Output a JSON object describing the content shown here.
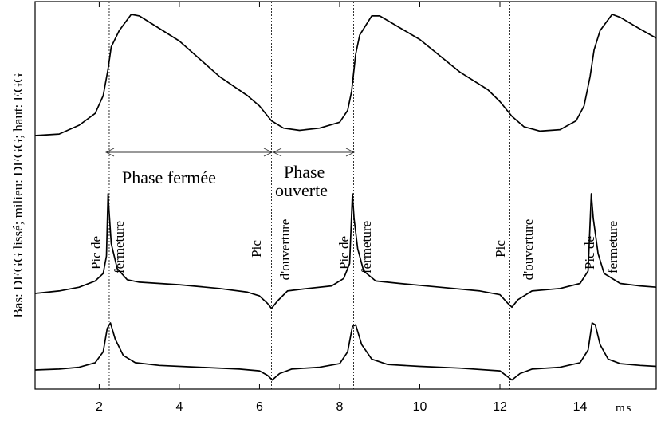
{
  "chart_data": {
    "type": "line",
    "title": "",
    "ylabel": "Bas: DEGG lissé; milieu: DEGG; haut: EGG",
    "xunit": "ms",
    "xlim": [
      0.4,
      15.9
    ],
    "xticks": [
      2,
      4,
      6,
      8,
      10,
      12,
      14
    ],
    "grid": false,
    "legend": "none",
    "markers": [
      2.25,
      6.3,
      8.35,
      12.25,
      14.3
    ],
    "series": [
      {
        "name": "EGG",
        "points": [
          [
            0.4,
            3.5
          ],
          [
            1.0,
            3.6
          ],
          [
            1.5,
            4.2
          ],
          [
            1.9,
            5.0
          ],
          [
            2.1,
            6.2
          ],
          [
            2.22,
            8.0
          ],
          [
            2.3,
            9.5
          ],
          [
            2.5,
            10.6
          ],
          [
            2.8,
            11.7
          ],
          [
            3.0,
            11.6
          ],
          [
            4.0,
            9.9
          ],
          [
            5.0,
            7.5
          ],
          [
            5.7,
            6.2
          ],
          [
            6.0,
            5.5
          ],
          [
            6.3,
            4.5
          ],
          [
            6.6,
            4.0
          ],
          [
            7.0,
            3.85
          ],
          [
            7.5,
            4.0
          ],
          [
            8.0,
            4.4
          ],
          [
            8.2,
            5.2
          ],
          [
            8.3,
            6.5
          ],
          [
            8.4,
            9.0
          ],
          [
            8.5,
            10.3
          ],
          [
            8.8,
            11.6
          ],
          [
            9.0,
            11.6
          ],
          [
            10.0,
            10.0
          ],
          [
            11.0,
            7.8
          ],
          [
            11.7,
            6.6
          ],
          [
            12.0,
            5.8
          ],
          [
            12.3,
            4.8
          ],
          [
            12.6,
            4.1
          ],
          [
            13.0,
            3.8
          ],
          [
            13.5,
            3.9
          ],
          [
            13.9,
            4.5
          ],
          [
            14.1,
            5.5
          ],
          [
            14.25,
            7.5
          ],
          [
            14.35,
            9.3
          ],
          [
            14.5,
            10.6
          ],
          [
            14.8,
            11.7
          ],
          [
            15.0,
            11.5
          ],
          [
            15.5,
            10.7
          ],
          [
            15.9,
            10.1
          ]
        ]
      },
      {
        "name": "DEGG",
        "points": [
          [
            0.4,
            0.0
          ],
          [
            1.0,
            0.1
          ],
          [
            1.5,
            0.25
          ],
          [
            1.9,
            0.5
          ],
          [
            2.1,
            0.8
          ],
          [
            2.18,
            1.5
          ],
          [
            2.22,
            4.0
          ],
          [
            2.25,
            3.2
          ],
          [
            2.3,
            2.0
          ],
          [
            2.45,
            1.0
          ],
          [
            2.7,
            0.55
          ],
          [
            3.0,
            0.45
          ],
          [
            4.0,
            0.35
          ],
          [
            5.0,
            0.2
          ],
          [
            5.7,
            0.05
          ],
          [
            6.0,
            -0.1
          ],
          [
            6.2,
            -0.4
          ],
          [
            6.3,
            -0.6
          ],
          [
            6.45,
            -0.3
          ],
          [
            6.7,
            0.1
          ],
          [
            7.2,
            0.2
          ],
          [
            7.8,
            0.3
          ],
          [
            8.1,
            0.6
          ],
          [
            8.25,
            1.2
          ],
          [
            8.32,
            4.0
          ],
          [
            8.36,
            3.0
          ],
          [
            8.45,
            1.8
          ],
          [
            8.6,
            0.9
          ],
          [
            8.9,
            0.5
          ],
          [
            9.5,
            0.4
          ],
          [
            10.5,
            0.25
          ],
          [
            11.5,
            0.1
          ],
          [
            12.0,
            -0.05
          ],
          [
            12.2,
            -0.4
          ],
          [
            12.3,
            -0.55
          ],
          [
            12.45,
            -0.25
          ],
          [
            12.8,
            0.1
          ],
          [
            13.5,
            0.2
          ],
          [
            14.0,
            0.4
          ],
          [
            14.2,
            0.9
          ],
          [
            14.28,
            4.0
          ],
          [
            14.33,
            3.0
          ],
          [
            14.45,
            1.6
          ],
          [
            14.6,
            0.8
          ],
          [
            15.0,
            0.4
          ],
          [
            15.5,
            0.3
          ],
          [
            15.9,
            0.25
          ]
        ]
      },
      {
        "name": "DEGG lissé",
        "points": [
          [
            0.4,
            0.0
          ],
          [
            1.0,
            0.05
          ],
          [
            1.5,
            0.15
          ],
          [
            1.9,
            0.4
          ],
          [
            2.1,
            1.0
          ],
          [
            2.2,
            2.3
          ],
          [
            2.28,
            2.6
          ],
          [
            2.4,
            1.7
          ],
          [
            2.6,
            0.8
          ],
          [
            2.9,
            0.4
          ],
          [
            3.5,
            0.25
          ],
          [
            4.5,
            0.15
          ],
          [
            5.5,
            0.05
          ],
          [
            6.0,
            -0.05
          ],
          [
            6.2,
            -0.3
          ],
          [
            6.32,
            -0.55
          ],
          [
            6.5,
            -0.2
          ],
          [
            6.8,
            0.05
          ],
          [
            7.5,
            0.15
          ],
          [
            8.0,
            0.35
          ],
          [
            8.2,
            1.0
          ],
          [
            8.32,
            2.4
          ],
          [
            8.4,
            2.5
          ],
          [
            8.55,
            1.4
          ],
          [
            8.8,
            0.6
          ],
          [
            9.2,
            0.3
          ],
          [
            10.0,
            0.2
          ],
          [
            11.0,
            0.1
          ],
          [
            12.0,
            -0.05
          ],
          [
            12.15,
            -0.3
          ],
          [
            12.3,
            -0.55
          ],
          [
            12.5,
            -0.2
          ],
          [
            12.8,
            0.05
          ],
          [
            13.5,
            0.15
          ],
          [
            14.0,
            0.4
          ],
          [
            14.2,
            1.1
          ],
          [
            14.3,
            2.6
          ],
          [
            14.38,
            2.5
          ],
          [
            14.5,
            1.4
          ],
          [
            14.7,
            0.6
          ],
          [
            15.0,
            0.35
          ],
          [
            15.5,
            0.25
          ],
          [
            15.9,
            0.2
          ]
        ]
      }
    ],
    "annotations": {
      "phase_fermee": "Phase fermée",
      "phase_ouverte_1": "Phase",
      "phase_ouverte_2": "ouverte",
      "pic_de": "Pic de",
      "fermeture": "fermeture",
      "pic": "Pic",
      "ouverture": "d'ouverture"
    }
  }
}
